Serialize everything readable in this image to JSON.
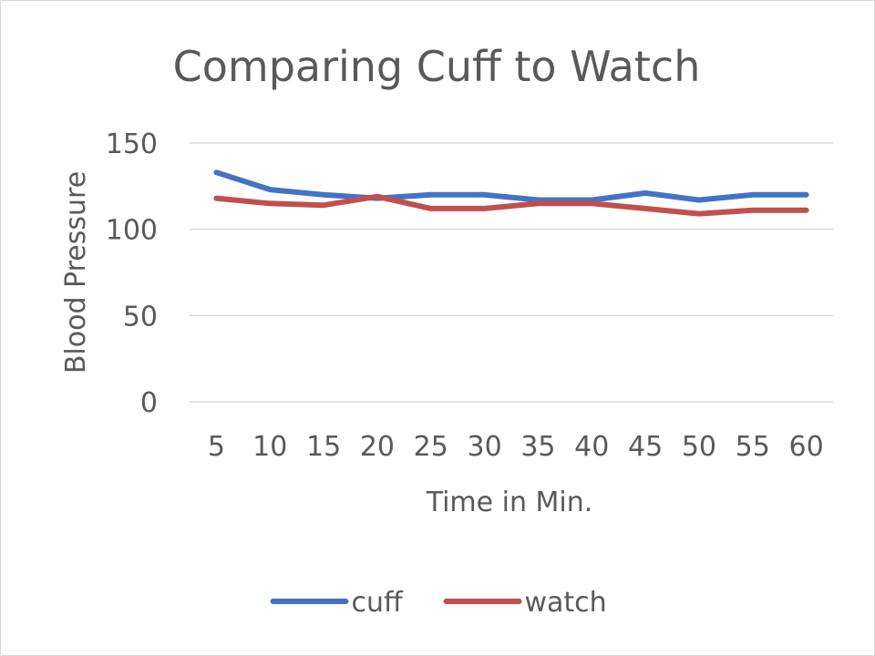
{
  "chart_data": {
    "type": "line",
    "title": "Comparing Cuff to Watch",
    "xlabel": "Time in Min.",
    "ylabel": "Blood Pressure",
    "categories": [
      "5",
      "10",
      "15",
      "20",
      "25",
      "30",
      "35",
      "40",
      "45",
      "50",
      "55",
      "60"
    ],
    "yticks": [
      "0",
      "50",
      "100",
      "150"
    ],
    "ylim": [
      0,
      150
    ],
    "grid": true,
    "legend": "bottom",
    "series": [
      {
        "name": "cuff",
        "color": "#4472c4",
        "values": [
          133,
          123,
          120,
          118,
          120,
          120,
          117,
          117,
          121,
          117,
          120,
          120
        ]
      },
      {
        "name": "watch",
        "color": "#c0504d",
        "values": [
          118,
          115,
          114,
          119,
          112,
          112,
          115,
          115,
          112,
          109,
          111,
          111
        ]
      }
    ]
  }
}
